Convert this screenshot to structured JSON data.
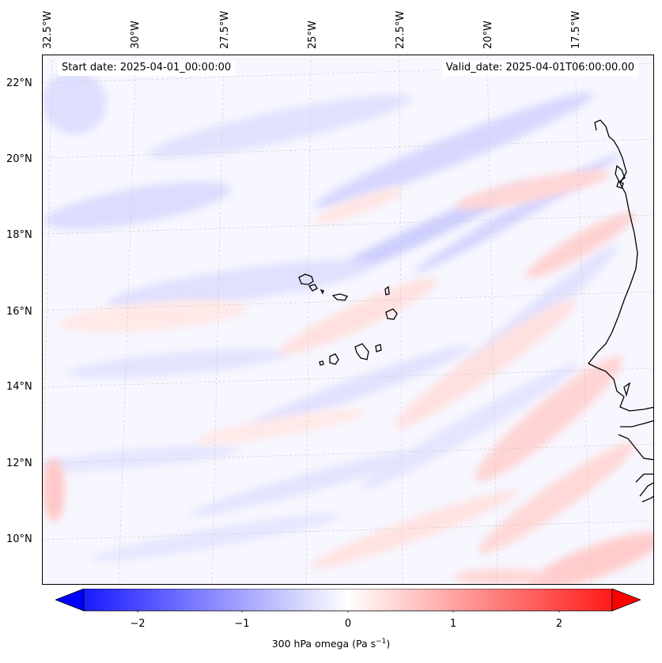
{
  "header": {
    "start_date": "Start date: 2025-04-01_00:00:00",
    "valid_date": "Valid_date: 2025-04-01T06:00:00.00"
  },
  "map": {
    "lon_labels": [
      "32.5°W",
      "30°W",
      "27.5°W",
      "25°W",
      "22.5°W",
      "20°W",
      "17.5°W"
    ],
    "lat_labels": [
      "22°N",
      "20°N",
      "18°N",
      "16°N",
      "14°N",
      "12°N",
      "10°N"
    ],
    "gridlines": true,
    "coastline_color": "#000000",
    "field": "300 hPa omega"
  },
  "colorbar": {
    "ticks": [
      "−2",
      "−1",
      "0",
      "1",
      "2"
    ],
    "label": "300 hPa omega (Pa s",
    "label_sup": "−1",
    "label_end": ")",
    "vmin": -2.6,
    "vmax": 2.6,
    "extend": "both",
    "colormap": "bwr",
    "low_color": "#0000ff",
    "mid_color": "#ffffff",
    "high_color": "#ff0000"
  }
}
